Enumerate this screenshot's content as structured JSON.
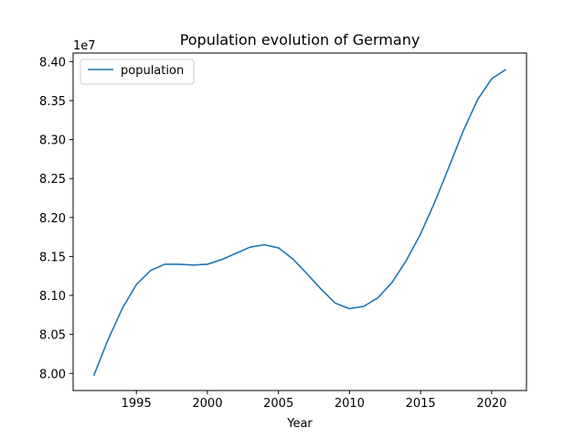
{
  "chart_data": {
    "type": "line",
    "title": "Population evolution of Germany",
    "xlabel": "Year",
    "ylabel": "",
    "y_offset_label": "1e7",
    "y_scale_factor": 10000000,
    "xlim": [
      1990.55,
      2022.45
    ],
    "ylim": [
      79780000,
      84110000
    ],
    "xticks": [
      1995,
      2000,
      2005,
      2010,
      2015,
      2020
    ],
    "yticks": [
      80000000,
      80500000,
      81000000,
      81500000,
      82000000,
      82500000,
      83000000,
      83500000,
      84000000
    ],
    "ytick_labels": [
      "8.00",
      "8.05",
      "8.10",
      "8.15",
      "8.20",
      "8.25",
      "8.30",
      "8.35",
      "8.40"
    ],
    "grid": false,
    "legend_position": "top-left",
    "series": [
      {
        "name": "population",
        "color": "#1f77b4",
        "x": [
          1992,
          1993,
          1994,
          1995,
          1996,
          1997,
          1998,
          1999,
          2000,
          2001,
          2002,
          2003,
          2004,
          2005,
          2006,
          2007,
          2008,
          2009,
          2010,
          2011,
          2012,
          2013,
          2014,
          2015,
          2016,
          2017,
          2018,
          2019,
          2020,
          2021
        ],
        "y": [
          79970000,
          80430000,
          80830000,
          81140000,
          81320000,
          81400000,
          81400000,
          81390000,
          81400000,
          81460000,
          81540000,
          81620000,
          81650000,
          81610000,
          81470000,
          81280000,
          81080000,
          80900000,
          80830000,
          80860000,
          80970000,
          81170000,
          81450000,
          81790000,
          82200000,
          82650000,
          83110000,
          83510000,
          83780000,
          83900000
        ]
      }
    ]
  }
}
